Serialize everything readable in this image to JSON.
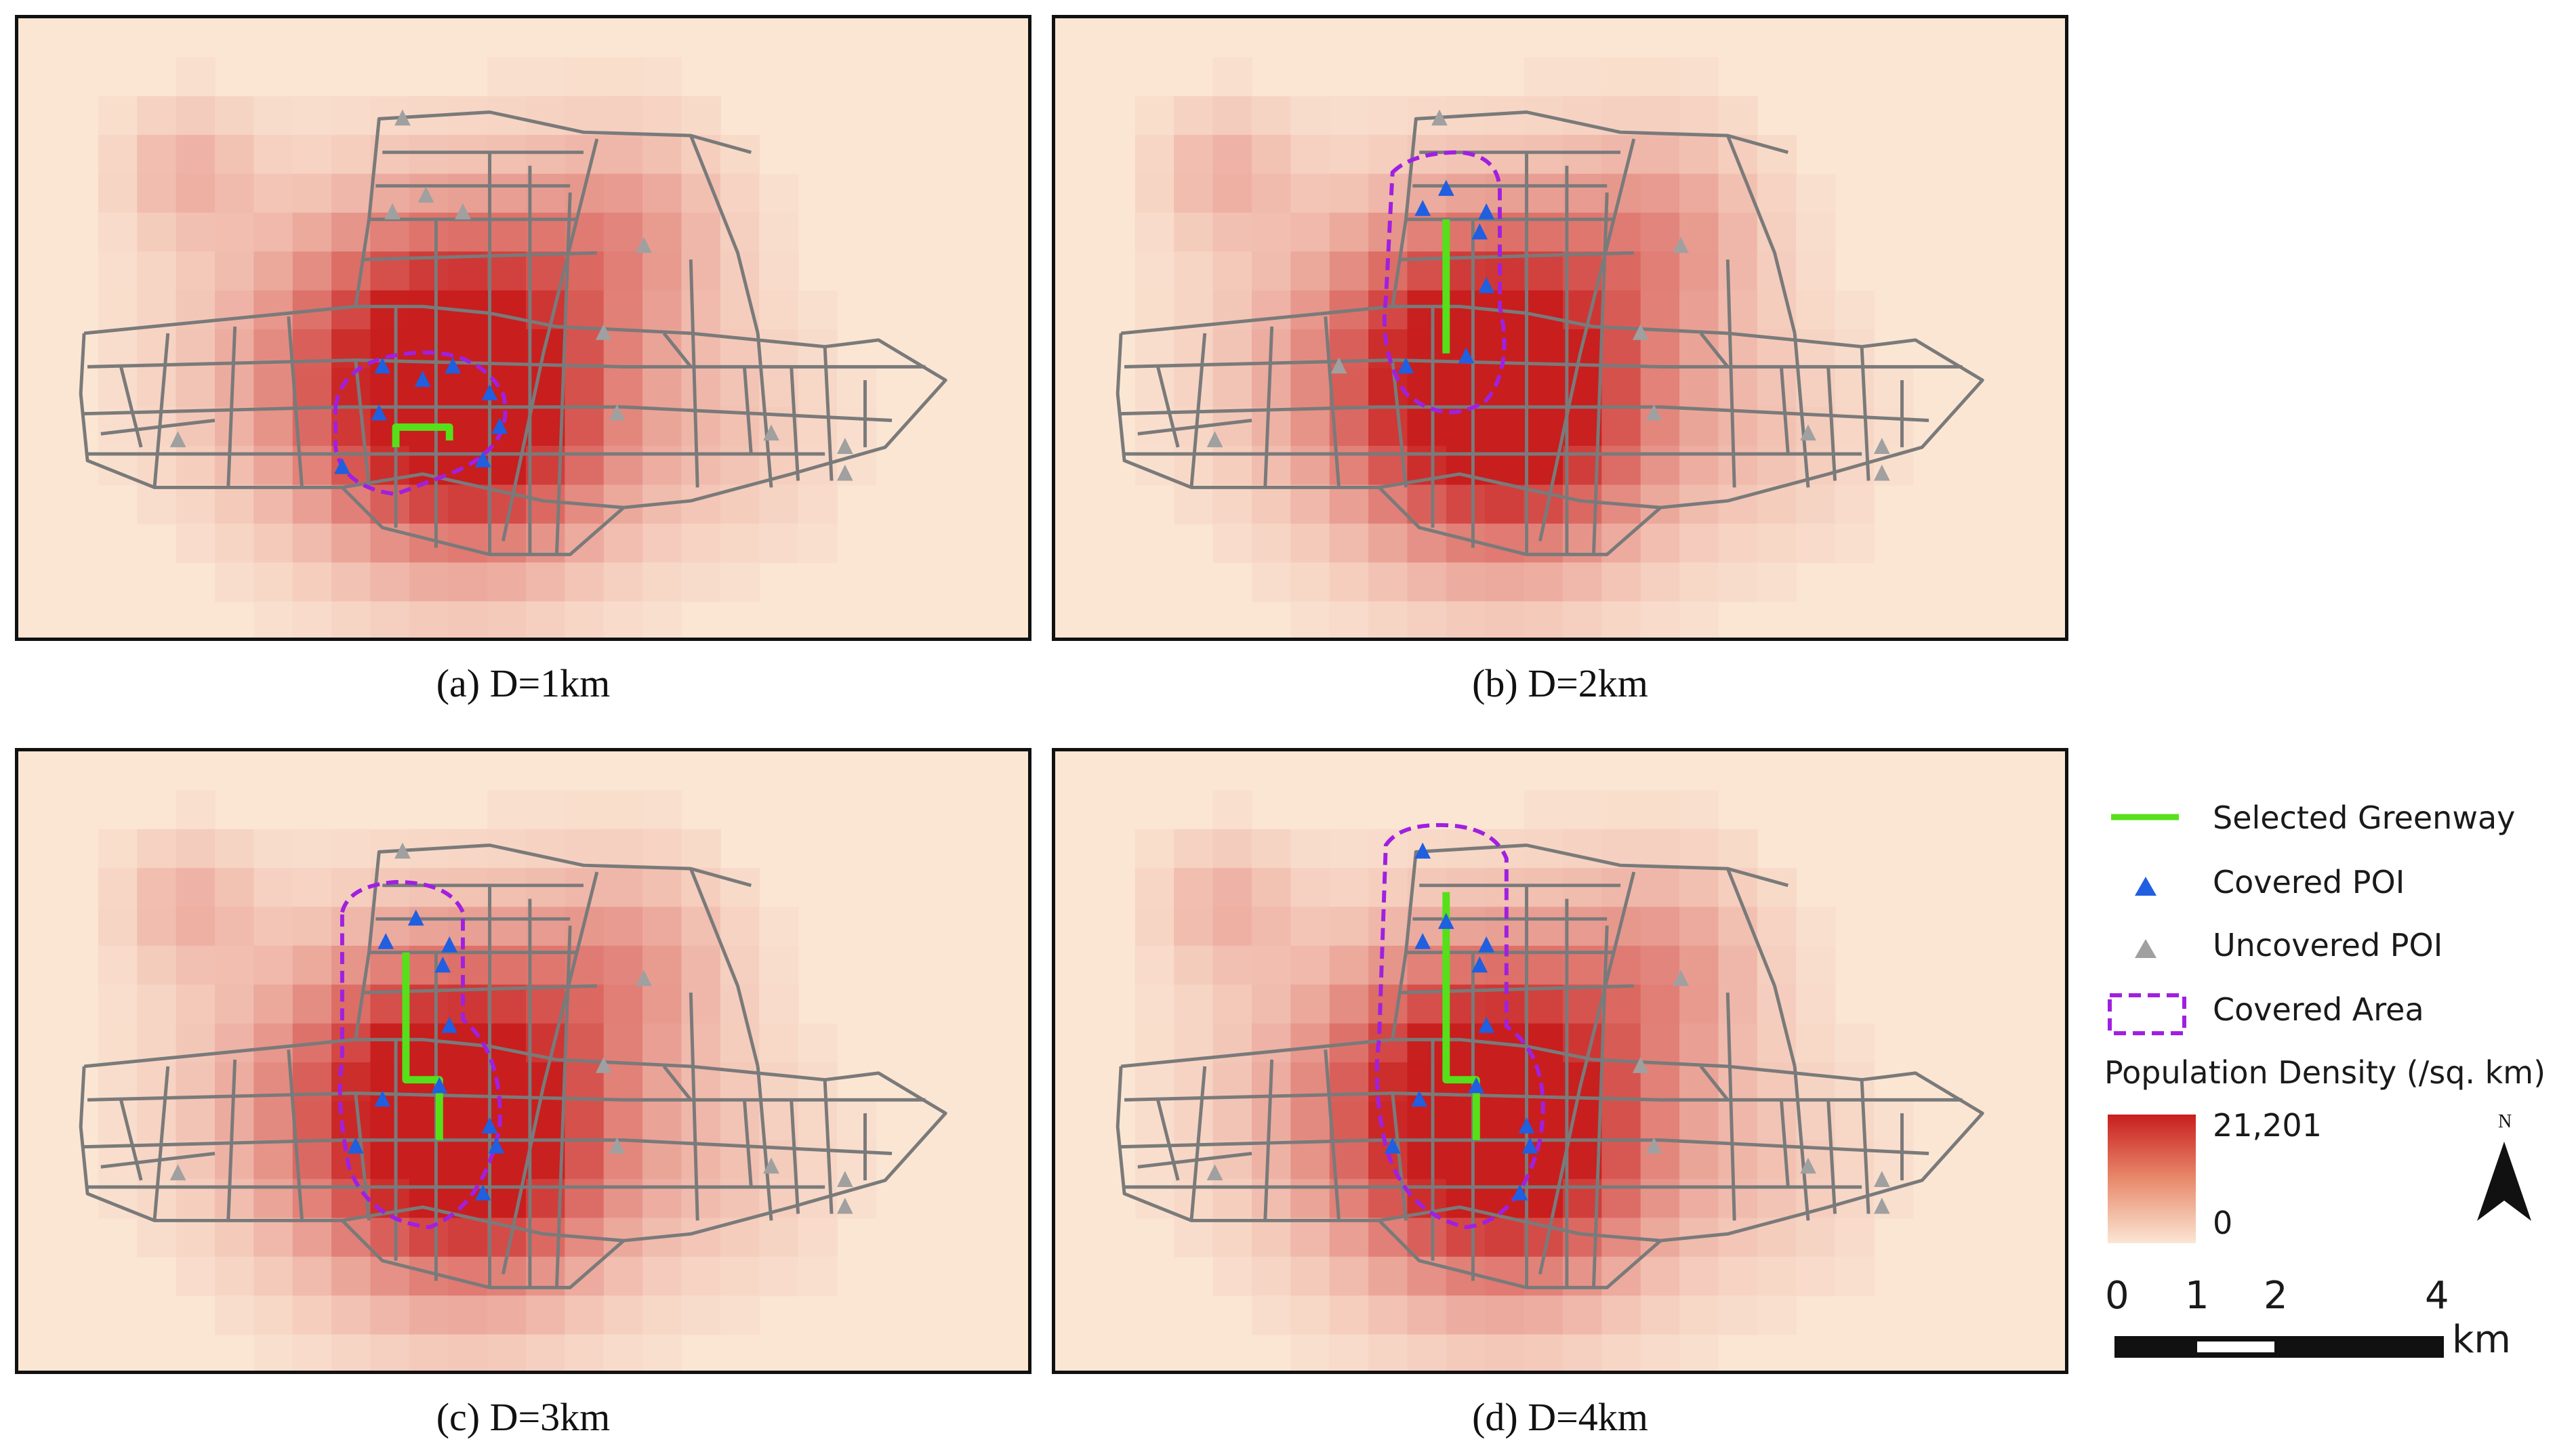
{
  "panels": [
    {
      "id": "a",
      "caption": "(a) D=1km"
    },
    {
      "id": "b",
      "caption": "(b) D=2km"
    },
    {
      "id": "c",
      "caption": "(c) D=3km"
    },
    {
      "id": "d",
      "caption": "(d) D=4km"
    }
  ],
  "legend": {
    "greenway": "Selected Greenway",
    "covered_poi": "Covered POI",
    "uncovered_poi": "Uncovered POI",
    "covered_area": "Covered Area",
    "density_title": "Population Density (/sq. km)",
    "density_max": "21,201",
    "density_min": "0"
  },
  "north_label": "N",
  "scale_bar": {
    "ticks": [
      "0",
      "1",
      "2",
      "4"
    ],
    "unit": "km"
  },
  "colors": {
    "background": "#fbe6d4",
    "density_high": "#c81e1e",
    "density_low": "#fbe6d4",
    "roads": "#7a7a7a",
    "greenway": "#55e01a",
    "covered_poi": "#1f5fe0",
    "uncovered_poi": "#a0a0a0",
    "covered_area": "#a020e0"
  }
}
